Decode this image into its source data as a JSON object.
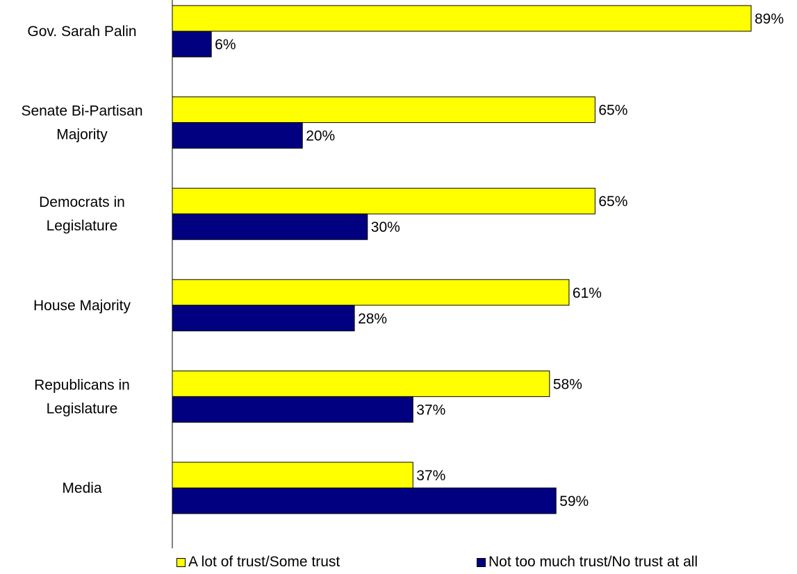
{
  "chart_data": {
    "type": "bar",
    "orientation": "horizontal",
    "categories": [
      [
        "Gov. Sarah Palin"
      ],
      [
        "Senate Bi-Partisan",
        "Majority"
      ],
      [
        "Democrats in",
        "Legislature"
      ],
      [
        "House Majority"
      ],
      [
        "Republicans in",
        "Legislature"
      ],
      [
        "Media"
      ]
    ],
    "series": [
      {
        "name": "A lot of trust/Some trust",
        "color": "#ffff00",
        "values": [
          89,
          65,
          65,
          61,
          58,
          37
        ],
        "labels": [
          "89%",
          "65%",
          "65%",
          "61%",
          "58%",
          "37%"
        ]
      },
      {
        "name": "Not too much trust/No trust at all",
        "color": "#000080",
        "values": [
          6,
          20,
          30,
          28,
          37,
          59
        ],
        "labels": [
          "6%",
          "20%",
          "30%",
          "28%",
          "37%",
          "59%"
        ]
      }
    ],
    "xlim": [
      0,
      89
    ],
    "grid": false,
    "legend_position": "bottom"
  }
}
